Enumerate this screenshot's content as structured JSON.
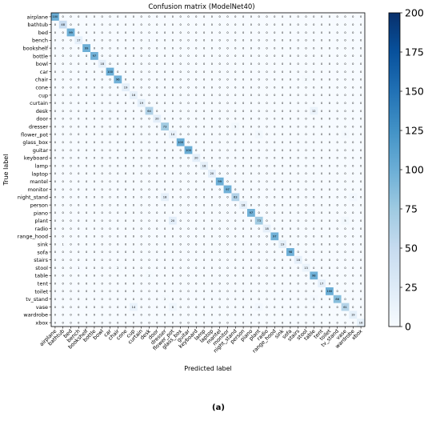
{
  "chart_data": {
    "type": "heatmap",
    "title": "Confusion matrix (ModelNet40)",
    "xlabel": "Predicted label",
    "ylabel": "True label",
    "caption": "(a)",
    "classes": [
      "airplane",
      "bathtub",
      "bed",
      "bench",
      "bookshelf",
      "bottle",
      "bowl",
      "car",
      "chair",
      "cone",
      "cup",
      "curtain",
      "desk",
      "door",
      "dresser",
      "flower_pot",
      "glass_box",
      "guitar",
      "keyboard",
      "lamp",
      "laptop",
      "mantel",
      "monitor",
      "night_stand",
      "person",
      "piano",
      "plant",
      "radio",
      "range_hood",
      "sink",
      "sofa",
      "stairs",
      "stool",
      "table",
      "tent",
      "toilet",
      "tv_stand",
      "vase",
      "wardrobe",
      "xbox"
    ],
    "diagonal": [
      100,
      48,
      99,
      17,
      99,
      97,
      18,
      100,
      96,
      19,
      16,
      19,
      64,
      20,
      73,
      14,
      100,
      100,
      20,
      18,
      20,
      99,
      97,
      63,
      18,
      97,
      73,
      18,
      97,
      19,
      98,
      18,
      13,
      98,
      17,
      100,
      86,
      61,
      19,
      16
    ],
    "off_diagonal": [
      {
        "true": "bench",
        "pred": "desk",
        "value": 1
      },
      {
        "true": "chair",
        "pred": "stool",
        "value": 2
      },
      {
        "true": "desk",
        "pred": "table",
        "value": 12
      },
      {
        "true": "dresser",
        "pred": "night_stand",
        "value": 5
      },
      {
        "true": "flower_pot",
        "pred": "plant",
        "value": 5
      },
      {
        "true": "flower_pot",
        "pred": "vase",
        "value": 3
      },
      {
        "true": "night_stand",
        "pred": "dresser",
        "value": 18
      },
      {
        "true": "night_stand",
        "pred": "wardrobe",
        "value": 4
      },
      {
        "true": "plant",
        "pred": "flower_pot",
        "value": 20
      },
      {
        "true": "plant",
        "pred": "vase",
        "value": 5
      },
      {
        "true": "sink",
        "pred": "bathtub",
        "value": 1
      },
      {
        "true": "stool",
        "pred": "chair",
        "value": 2
      },
      {
        "true": "stool",
        "pred": "bench",
        "value": 1
      },
      {
        "true": "table",
        "pred": "desk",
        "value": 2
      },
      {
        "true": "tv_stand",
        "pred": "table",
        "value": 3
      },
      {
        "true": "tv_stand",
        "pred": "dresser",
        "value": 2
      },
      {
        "true": "vase",
        "pred": "cup",
        "value": 14
      },
      {
        "true": "vase",
        "pred": "flower_pot",
        "value": 8
      },
      {
        "true": "vase",
        "pred": "plant",
        "value": 4
      }
    ],
    "colorbar": {
      "min": 0,
      "max": 200,
      "ticks": [
        0,
        25,
        50,
        75,
        100,
        125,
        150,
        175,
        200
      ],
      "colormap": "Blues"
    },
    "colors": {
      "low": "#f7fbff",
      "high": "#08306b"
    },
    "grid": false
  }
}
